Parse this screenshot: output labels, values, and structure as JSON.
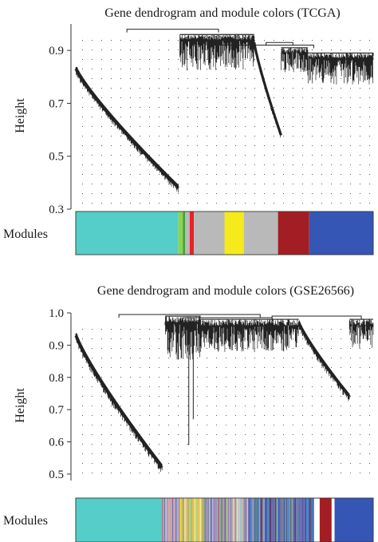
{
  "chart_data": [
    {
      "type": "dendrogram",
      "title": "Gene dendrogram and module colors (TCGA)",
      "ylabel": "Height",
      "yticks": [
        "0.9",
        "0.7",
        "0.5",
        "0.3"
      ],
      "ytick_values": [
        0.9,
        0.7,
        0.5,
        0.3
      ],
      "ylim": [
        0.3,
        1.0
      ],
      "grid": true,
      "modules_label": "Modules",
      "modules": [
        {
          "color": "#55cdc8",
          "span": [
            0.0,
            0.345
          ]
        },
        {
          "color": "#93d04a",
          "span": [
            0.345,
            0.36
          ]
        },
        {
          "color": "#3aa541",
          "span": [
            0.36,
            0.368
          ]
        },
        {
          "color": "#b9b9b9",
          "span": [
            0.368,
            0.383
          ]
        },
        {
          "color": "#ea2027",
          "span": [
            0.383,
            0.397
          ]
        },
        {
          "color": "#b9b9b9",
          "span": [
            0.397,
            0.5
          ]
        },
        {
          "color": "#f4ea1c",
          "span": [
            0.5,
            0.565
          ]
        },
        {
          "color": "#b9b9b9",
          "span": [
            0.565,
            0.68
          ]
        },
        {
          "color": "#a31e24",
          "span": [
            0.68,
            0.785
          ]
        },
        {
          "color": "#3656b6",
          "span": [
            0.785,
            1.0
          ]
        }
      ],
      "clusters": [
        {
          "start": 0.0,
          "end": 0.345,
          "top": 0.83,
          "bottom": 0.38,
          "shape": "decay"
        },
        {
          "start": 0.35,
          "end": 0.6,
          "top": 0.96,
          "bottom": 0.8,
          "shape": "dense"
        },
        {
          "start": 0.6,
          "end": 0.69,
          "top": 0.93,
          "bottom": 0.58,
          "shape": "decay"
        },
        {
          "start": 0.69,
          "end": 0.78,
          "top": 0.91,
          "bottom": 0.8,
          "shape": "dense"
        },
        {
          "start": 0.78,
          "end": 1.0,
          "top": 0.89,
          "bottom": 0.75,
          "shape": "dense"
        }
      ],
      "merges": [
        {
          "xa": 0.172,
          "xb": 0.48,
          "h": 0.98
        },
        {
          "xa": 0.48,
          "xb": 0.8,
          "h": 0.92
        },
        {
          "xa": 0.64,
          "xb": 0.73,
          "h": 0.93
        },
        {
          "xa": 0.86,
          "xb": 1.0,
          "h": 0.89
        }
      ]
    },
    {
      "type": "dendrogram",
      "title": "Gene dendrogram and module colors (GSE26566)",
      "ylabel": "Height",
      "yticks": [
        "1.0",
        "0.9",
        "0.8",
        "0.7",
        "0.6",
        "0.5"
      ],
      "ytick_values": [
        1.0,
        0.9,
        0.8,
        0.7,
        0.6,
        0.5
      ],
      "ylim": [
        0.48,
        1.0
      ],
      "grid": true,
      "modules_label": "Modules",
      "modules": [
        {
          "color": "#55cdc8",
          "span": [
            0.0,
            0.29
          ]
        },
        {
          "color": "#b6a9cf",
          "span": [
            0.29,
            0.35
          ]
        },
        {
          "color": "#e8d84a",
          "span": [
            0.35,
            0.43
          ]
        },
        {
          "color": "#8f8fd0",
          "span": [
            0.43,
            0.53
          ]
        },
        {
          "color": "#c9b9d6",
          "span": [
            0.53,
            0.58
          ]
        },
        {
          "color": "#3656b6",
          "span": [
            0.58,
            0.8
          ]
        },
        {
          "color": "#a31e24",
          "span": [
            0.82,
            0.86
          ]
        },
        {
          "color": "#3656b6",
          "span": [
            0.87,
            1.0
          ]
        }
      ],
      "stripes": [
        "#3656b6",
        "#55cdc8",
        "#f4ea1c",
        "#b9b9b9",
        "#a31e24",
        "#93d04a",
        "#8f6fb0",
        "#e79ac0",
        "#2e2e8e",
        "#6d6d6d",
        "#d9a441",
        "#ffffff"
      ],
      "stripe_range": [
        0.29,
        0.8
      ],
      "clusters": [
        {
          "start": 0.0,
          "end": 0.29,
          "top": 0.93,
          "bottom": 0.52,
          "shape": "decay"
        },
        {
          "start": 0.3,
          "end": 0.42,
          "top": 0.99,
          "bottom": 0.83,
          "shape": "dense"
        },
        {
          "start": 0.42,
          "end": 0.56,
          "top": 0.98,
          "bottom": 0.86,
          "shape": "dense"
        },
        {
          "start": 0.56,
          "end": 0.75,
          "top": 0.98,
          "bottom": 0.86,
          "shape": "dense"
        },
        {
          "start": 0.75,
          "end": 0.92,
          "top": 0.97,
          "bottom": 0.74,
          "shape": "decay"
        },
        {
          "start": 0.92,
          "end": 1.0,
          "top": 0.98,
          "bottom": 0.87,
          "shape": "dense"
        }
      ],
      "merges": [
        {
          "xa": 0.145,
          "xb": 0.62,
          "h": 0.995
        },
        {
          "xa": 0.36,
          "xb": 0.66,
          "h": 0.985
        },
        {
          "xa": 0.66,
          "xb": 0.96,
          "h": 0.99
        }
      ],
      "spikes": [
        {
          "x": 0.38,
          "bottom": 0.59
        },
        {
          "x": 0.395,
          "bottom": 0.67
        }
      ]
    }
  ]
}
